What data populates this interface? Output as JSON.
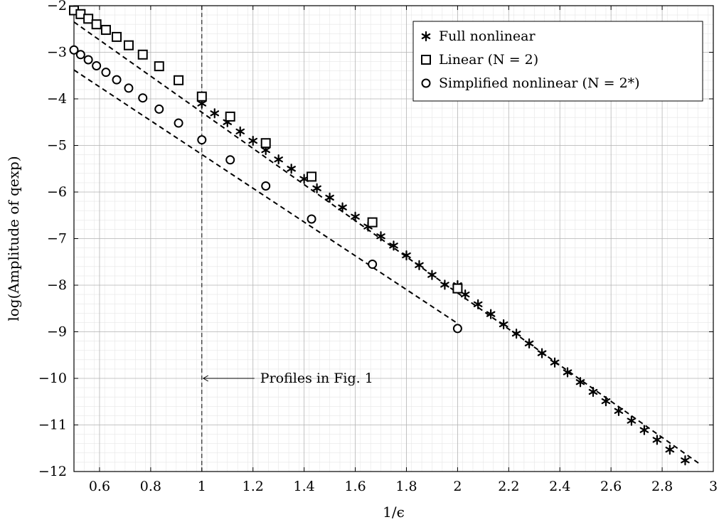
{
  "chart_data": {
    "type": "scatter",
    "xlabel": "1/ϵ",
    "ylabel": "log(Amplitude of qexp)",
    "xlim": [
      0.5,
      3
    ],
    "ylim": [
      -12,
      -2
    ],
    "x_ticks": [
      0.6,
      0.8,
      1,
      1.2,
      1.4,
      1.6,
      1.8,
      2,
      2.2,
      2.4,
      2.6,
      2.8,
      3
    ],
    "x_tick_labels": [
      "0.6",
      "0.8",
      "1",
      "1.2",
      "1.4",
      "1.6",
      "1.8",
      "2",
      "2.2",
      "2.4",
      "2.6",
      "2.8",
      "3"
    ],
    "y_ticks": [
      -12,
      -11,
      -10,
      -9,
      -8,
      -7,
      -6,
      -5,
      -4,
      -3,
      -2
    ],
    "y_tick_labels": [
      "−12",
      "−11",
      "−10",
      "−9",
      "−8",
      "−7",
      "−6",
      "−5",
      "−4",
      "−3",
      "−2"
    ],
    "grid": true,
    "minor_grid": true,
    "legend_position": "top-right",
    "series": [
      {
        "name": "Full nonlinear",
        "marker": "asterisk",
        "x": [
          1.0,
          1.05,
          1.1,
          1.15,
          1.2,
          1.25,
          1.3,
          1.35,
          1.4,
          1.45,
          1.5,
          1.55,
          1.6,
          1.65,
          1.7,
          1.75,
          1.8,
          1.85,
          1.9,
          1.95,
          2.0,
          2.03,
          2.08,
          2.13,
          2.18,
          2.23,
          2.28,
          2.33,
          2.38,
          2.43,
          2.48,
          2.53,
          2.58,
          2.63,
          2.68,
          2.73,
          2.78,
          2.83,
          2.89
        ],
        "y": [
          -4.1,
          -4.31,
          -4.5,
          -4.7,
          -4.9,
          -5.1,
          -5.3,
          -5.5,
          -5.72,
          -5.92,
          -6.12,
          -6.33,
          -6.53,
          -6.74,
          -6.95,
          -7.15,
          -7.36,
          -7.57,
          -7.78,
          -7.99,
          -8.0,
          -8.2,
          -8.41,
          -8.62,
          -8.84,
          -9.04,
          -9.25,
          -9.46,
          -9.66,
          -9.87,
          -10.08,
          -10.29,
          -10.49,
          -10.7,
          -10.91,
          -11.11,
          -11.32,
          -11.53,
          -11.76
        ]
      },
      {
        "name": "Linear (N = 2)",
        "marker": "square",
        "x": [
          0.5,
          0.526,
          0.556,
          0.588,
          0.625,
          0.667,
          0.714,
          0.769,
          0.833,
          0.909,
          1.0,
          1.111,
          1.25,
          1.429,
          1.667,
          2.0
        ],
        "y": [
          -2.1,
          -2.18,
          -2.28,
          -2.4,
          -2.52,
          -2.67,
          -2.85,
          -3.05,
          -3.3,
          -3.6,
          -3.95,
          -4.38,
          -4.95,
          -5.67,
          -6.65,
          -8.07
        ]
      },
      {
        "name": "Simplified nonlinear (N = 2*)",
        "marker": "circle",
        "x": [
          0.5,
          0.526,
          0.556,
          0.588,
          0.625,
          0.667,
          0.714,
          0.769,
          0.833,
          0.909,
          1.0,
          1.111,
          1.25,
          1.429,
          1.667,
          2.0
        ],
        "y": [
          -2.95,
          -3.05,
          -3.16,
          -3.29,
          -3.43,
          -3.59,
          -3.77,
          -3.98,
          -4.22,
          -4.52,
          -4.88,
          -5.31,
          -5.87,
          -6.58,
          -7.55,
          -8.93
        ]
      }
    ],
    "fit_lines": [
      {
        "x": [
          0.5,
          2.95
        ],
        "y": [
          -2.35,
          -11.85
        ]
      },
      {
        "x": [
          0.5,
          2.0
        ],
        "y": [
          -3.38,
          -8.82
        ]
      }
    ],
    "vline_x": 1,
    "annotation": {
      "text": "Profiles in Fig. 1",
      "x": 1.0,
      "y": -10
    }
  }
}
